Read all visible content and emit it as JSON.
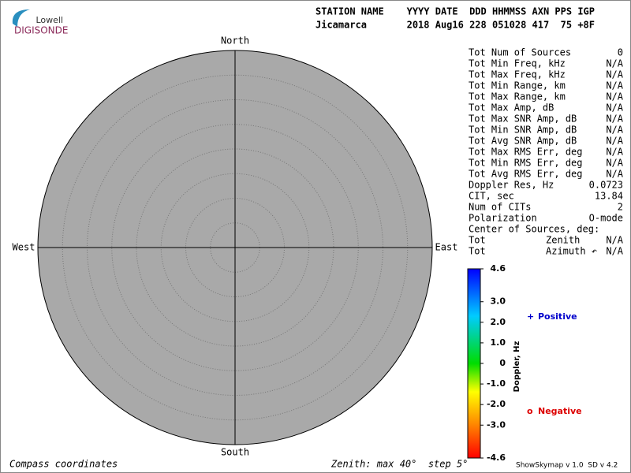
{
  "logo": {
    "line1": "Lowell",
    "line2": "DIGISONDE"
  },
  "header": {
    "row1": "STATION NAME    YYYY DATE  DDD HHMMSS AXN PPS IGP",
    "row2": "Jicamarca       2018 Aug16 228 051028 417  75 +8F"
  },
  "compass": {
    "north": "North",
    "south": "South",
    "west": "West",
    "east": "East"
  },
  "stats": {
    "rows": [
      {
        "label": "Tot Num of Sources",
        "value": "0",
        "color": "#aaaaaa"
      },
      {
        "label": "Tot Min Freq, kHz",
        "value": "N/A",
        "color": "#aaaaaa"
      },
      {
        "label": "Tot Max Freq, kHz",
        "value": "N/A",
        "color": "#aaaaaa"
      },
      {
        "label": "Tot Min Range, km",
        "value": "N/A",
        "color": "#aaaaaa"
      },
      {
        "label": "Tot Max Range, km",
        "value": "N/A",
        "color": "#aaaaaa"
      },
      {
        "label": "Tot Max Amp, dB",
        "value": "N/A",
        "color": "#aaaaaa"
      },
      {
        "label": "Tot Max SNR Amp, dB",
        "value": "N/A",
        "color": "#aaaaaa"
      },
      {
        "label": "Tot Min SNR Amp, dB",
        "value": "N/A",
        "color": "#aaaaaa"
      },
      {
        "label": "Tot Avg SNR Amp, dB",
        "value": "N/A",
        "color": "#aaaaaa"
      },
      {
        "label": "Tot Max RMS Err, deg",
        "value": "N/A",
        "color": "#aaaaaa"
      },
      {
        "label": "Tot Min RMS Err, deg",
        "value": "N/A",
        "color": "#aaaaaa"
      },
      {
        "label": "Tot Avg RMS Err, deg",
        "value": "N/A",
        "color": "#aaaaaa"
      },
      {
        "label": "Doppler Res, Hz",
        "value": "0.0723",
        "color": "#000000"
      },
      {
        "label": "CIT, sec",
        "value": "13.84",
        "color": "#000000"
      },
      {
        "label": "Num of CITs",
        "value": "2",
        "color": "#000000"
      },
      {
        "label": "Polarization",
        "value": "O-mode",
        "color": "#000000"
      },
      {
        "label": "Center of Sources, deg:"
      },
      {
        "label": "Tot",
        "sub": "Zenith",
        "value": "N/A",
        "color": "#aaaaaa"
      },
      {
        "label": "Tot",
        "sub": "Azimuth ↶",
        "value": "N/A",
        "color": "#aaaaaa"
      }
    ]
  },
  "colorbar": {
    "label": "Doppler, Hz",
    "lim": [
      -4.6,
      4.6
    ],
    "ticks": [
      4.6,
      {
        "value": 3,
        "label": "3.0"
      },
      {
        "value": 2,
        "label": "2.0"
      },
      {
        "value": 1,
        "label": "1.0"
      },
      0,
      {
        "value": -1,
        "label": "-1.0"
      },
      {
        "value": -2,
        "label": "-2.0"
      },
      {
        "value": -3,
        "label": "-3.0"
      },
      -4.6
    ]
  },
  "legend": {
    "positive": {
      "symbol": "+",
      "label": "Positive",
      "color": "#0000cc"
    },
    "negative": {
      "symbol": "o",
      "label": "Negative",
      "color": "#dd0000"
    }
  },
  "footer": {
    "left": "Compass coordinates",
    "middle": "Zenith: max 40°  step 5°",
    "right": "ShowSkymap v 1.0  SD v 4.2"
  }
}
